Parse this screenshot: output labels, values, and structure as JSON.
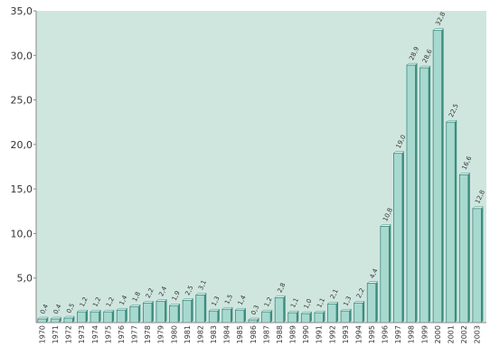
{
  "chart_data": {
    "type": "bar",
    "title": "",
    "xlabel": "",
    "ylabel": "",
    "ylim": [
      0,
      35
    ],
    "yticks": [
      "5,0",
      "10,0",
      "15,0",
      "20,0",
      "25,0",
      "30,0",
      "35,0"
    ],
    "grid": false,
    "categories": [
      "1970",
      "1971",
      "1972",
      "1973",
      "1974",
      "1975",
      "1976",
      "1977",
      "1978",
      "1979",
      "1980",
      "1981",
      "1982",
      "1983",
      "1984",
      "1985",
      "1986",
      "1987",
      "1988",
      "1989",
      "1990",
      "1991",
      "1992",
      "1993",
      "1994",
      "1995",
      "1996",
      "1997",
      "1998",
      "1999",
      "2000",
      "2001",
      "2002",
      "2003"
    ],
    "values": [
      0.4,
      0.4,
      0.5,
      1.2,
      1.2,
      1.2,
      1.4,
      1.8,
      2.2,
      2.4,
      1.9,
      2.5,
      3.1,
      1.3,
      1.5,
      1.4,
      0.3,
      1.2,
      2.8,
      1.1,
      1.0,
      1.1,
      2.1,
      1.3,
      2.2,
      4.4,
      10.8,
      19.0,
      28.9,
      28.6,
      32.8,
      22.5,
      16.6,
      12.8
    ],
    "data_labels": [
      "0,4",
      "0,4",
      "0,5",
      "1,2",
      "1,2",
      "1,2",
      "1,4",
      "1,8",
      "2,2",
      "2,4",
      "1,9",
      "2,5",
      "3,1",
      "1,3",
      "1,5",
      "1,4",
      "0,3",
      "1,2",
      "2,8",
      "1,1",
      "1,0",
      "1,1",
      "2,1",
      "1,3",
      "2,2",
      "4,4",
      "10,8",
      "19,0",
      "28,9",
      "28,6",
      "32,8",
      "22,5",
      "16,6",
      "12,8"
    ],
    "colors": {
      "plot_background": "#cfe6df",
      "bar_front": "#a8d9cf",
      "bar_side": "#3d8c80",
      "bar_top": "#e6f5f1",
      "axis": "#8a8a8a",
      "text": "#333333"
    }
  }
}
